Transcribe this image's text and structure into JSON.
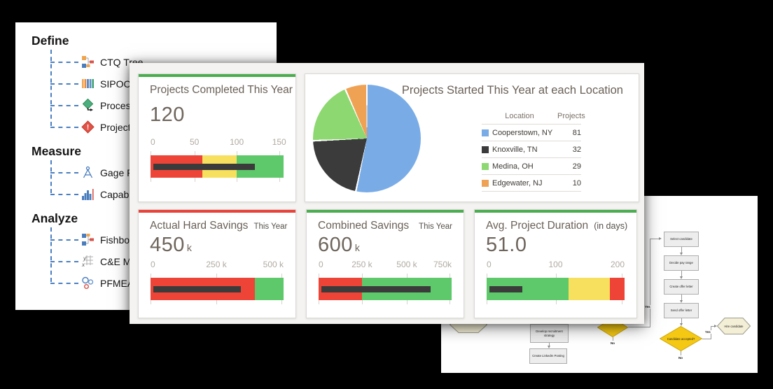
{
  "background_color": "#000000",
  "tree_panel": {
    "sections": [
      {
        "header": "Define",
        "items": [
          {
            "label": "CTQ Tree",
            "icon": "ctq-tree"
          },
          {
            "label": "SIPOC",
            "icon": "sipoc"
          },
          {
            "label": "Process M",
            "icon": "process-map"
          },
          {
            "label": "Project R",
            "icon": "project-risk"
          }
        ]
      },
      {
        "header": "Measure",
        "items": [
          {
            "label": "Gage R&R",
            "icon": "gage-rr"
          },
          {
            "label": "Capabilit",
            "icon": "capability"
          }
        ]
      },
      {
        "header": "Analyze",
        "items": [
          {
            "label": "Fishbone",
            "icon": "fishbone"
          },
          {
            "label": "C&E Matr",
            "icon": "ce-matrix"
          },
          {
            "label": "PFMEA (P",
            "icon": "pfmea"
          }
        ]
      }
    ]
  },
  "chart_data": [
    {
      "id": "projects_completed",
      "type": "bullet",
      "title": "Projects Completed This Year",
      "period": "",
      "value_display": "120",
      "value_suffix": "",
      "value": 120,
      "accent_color": "#4aad4f",
      "axis": {
        "max_value": 155,
        "clamp_last": false,
        "ticks": [
          {
            "label": "0",
            "value": 0,
            "pct": 0
          },
          {
            "label": "50",
            "value": 50,
            "pct": 33
          },
          {
            "label": "100",
            "value": 100,
            "pct": 64.8
          },
          {
            "label": "150",
            "value": 150,
            "pct": 96.7
          }
        ]
      },
      "ranges": [
        {
          "color": "#ee4437",
          "from": 0,
          "to": 60,
          "from_pct": 0,
          "to_pct": 38.8
        },
        {
          "color": "#f6e05e",
          "from": 60,
          "to": 100,
          "from_pct": 38.8,
          "to_pct": 64.8
        },
        {
          "color": "#5ec96a",
          "from": 100,
          "to": 155,
          "from_pct": 64.8,
          "to_pct": 100
        }
      ],
      "measure": {
        "value": 120,
        "start_pct": 2.2,
        "end_pct": 78.4,
        "color": "#3b3b3b"
      }
    },
    {
      "id": "projects_started",
      "type": "pie",
      "title": "Projects Started This Year at each Location",
      "legend_headers": {
        "location": "Location",
        "projects": "Projects"
      },
      "slices": [
        {
          "label": "Cooperstown, NY",
          "value": 81,
          "color": "#79ace7"
        },
        {
          "label": "Knoxville, TN",
          "value": 32,
          "color": "#3b3b3c"
        },
        {
          "label": "Medina, OH",
          "value": 29,
          "color": "#8dd871"
        },
        {
          "label": "Edgewater, NJ",
          "value": 10,
          "color": "#f0a254"
        }
      ],
      "start_angle_deg": 0,
      "clockwise": true,
      "separator_color": "#ffffff",
      "accent_color": "#ffffff"
    },
    {
      "id": "actual_hard_savings",
      "type": "bullet",
      "title": "Actual Hard Savings",
      "period": "This Year",
      "value_display": "450",
      "value_suffix": "k",
      "value": 450000,
      "accent_color": "#e8423a",
      "axis": {
        "max_value": 510000,
        "clamp_last": true,
        "ticks": [
          {
            "label": "0",
            "value": 0,
            "pct": 0
          },
          {
            "label": "250 k",
            "value": 250000,
            "pct": 49.5
          },
          {
            "label": "500 k",
            "value": 500000,
            "pct": 98.5
          }
        ]
      },
      "ranges": [
        {
          "color": "#ee4437",
          "from": 0,
          "to": 400000,
          "from_pct": 0,
          "to_pct": 78.4
        },
        {
          "color": "#5ec96a",
          "from": 400000,
          "to": 510000,
          "from_pct": 78.4,
          "to_pct": 100
        }
      ],
      "measure": {
        "value": 450000,
        "start_pct": 2.2,
        "end_pct": 68,
        "color": "#3b3b3b"
      }
    },
    {
      "id": "combined_savings",
      "type": "bullet",
      "title": "Combined Savings",
      "period": "This Year",
      "value_display": "600",
      "value_suffix": "k",
      "value": 600000,
      "accent_color": "#4aad4f",
      "axis": {
        "max_value": 770000,
        "clamp_last": true,
        "ticks": [
          {
            "label": "0",
            "value": 0,
            "pct": 0
          },
          {
            "label": "250 k",
            "value": 250000,
            "pct": 32.6
          },
          {
            "label": "500 k",
            "value": 500000,
            "pct": 66.3
          },
          {
            "label": "750k",
            "value": 750000,
            "pct": 98.5
          }
        ]
      },
      "ranges": [
        {
          "color": "#ee4437",
          "from": 0,
          "to": 250000,
          "from_pct": 0,
          "to_pct": 32.6
        },
        {
          "color": "#5ec96a",
          "from": 250000,
          "to": 770000,
          "from_pct": 32.6,
          "to_pct": 100
        }
      ],
      "measure": {
        "value": 600000,
        "start_pct": 2.2,
        "end_pct": 84.4,
        "color": "#3b3b3b"
      }
    },
    {
      "id": "avg_project_duration",
      "type": "bullet",
      "title": "Avg. Project Duration",
      "period": "(in days)",
      "value_display": "51.0",
      "value_suffix": "",
      "value": 51,
      "accent_color": "#4aad4f",
      "axis": {
        "max_value": 205,
        "clamp_last": true,
        "ticks": [
          {
            "label": "0",
            "value": 0,
            "pct": 0
          },
          {
            "label": "100",
            "value": 100,
            "pct": 50
          },
          {
            "label": "200",
            "value": 200,
            "pct": 98
          }
        ]
      },
      "ranges": [
        {
          "color": "#5ec96a",
          "from": 0,
          "to": 120,
          "from_pct": 0,
          "to_pct": 59.4
        },
        {
          "color": "#f6e05e",
          "from": 120,
          "to": 183,
          "from_pct": 59.4,
          "to_pct": 89.5
        },
        {
          "color": "#ee4437",
          "from": 183,
          "to": 205,
          "from_pct": 89.5,
          "to_pct": 100
        }
      ],
      "measure": {
        "value": 51,
        "start_pct": 2.2,
        "end_pct": 26,
        "color": "#3b3b3b"
      }
    }
  ],
  "flowchart": {
    "boxes": [
      "Select candidate",
      "Decide pay range",
      "Create offer letter",
      "Send offer letter"
    ],
    "partial_boxes": [
      "Develop recruitment strategy",
      "Create LinkedIn Posting"
    ],
    "decision": "Candidate accepted?",
    "terminal": "Hire candidate",
    "labels": {
      "yes": "Yes",
      "no": "No"
    },
    "colors": {
      "decision_fill": "#f4c813",
      "decision_border": "#c9a40a",
      "terminal_fill": "#f3eed6",
      "terminal_border": "#9b9b8b",
      "box_fill": "#ededed",
      "line": "#999999"
    }
  }
}
